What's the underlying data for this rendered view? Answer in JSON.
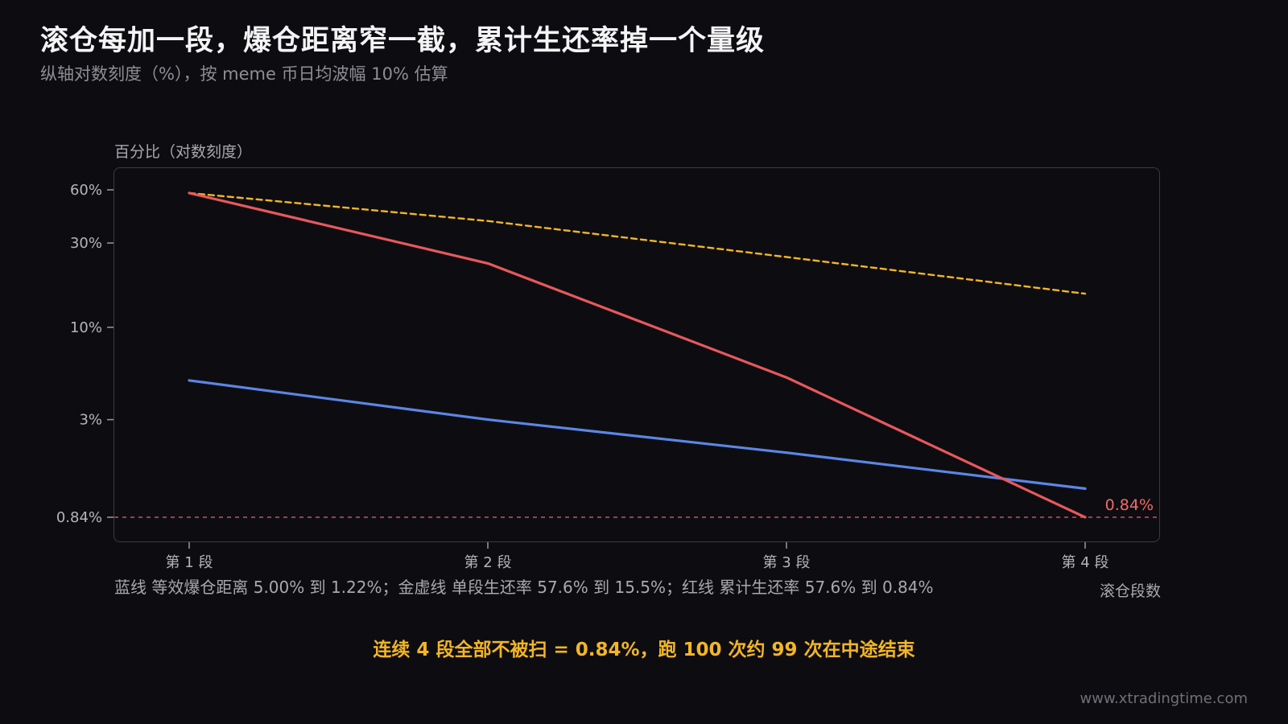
{
  "title": "滚仓每加一段，爆仓距离窄一截，累计生还率掉一个量级",
  "subtitle": "纵轴对数刻度（%），按 meme 币日均波幅 10% 估算",
  "note": "蓝线 等效爆仓距离 5.00% 到 1.22%；金虚线 单段生还率 57.6% 到 15.5%；红线 累计生还率 57.6% 到 0.84%",
  "conclusion": "连续 4 段全部不被扫 = 0.84%，跑 100 次约 99 次在中途结束",
  "watermark": "www.xtradingtime.com",
  "colors": {
    "background": "#0d0d11",
    "blue": "#5b86e5",
    "gold": "#f3b527",
    "red": "#e8585c",
    "accent_text": "#f3b527"
  },
  "chart_data": {
    "type": "line",
    "title": "滚仓每加一段，爆仓距离窄一截，累计生还率掉一个量级",
    "xlabel": "滚仓段数",
    "ylabel": "百分比（对数刻度）",
    "yscale": "log",
    "ylim": [
      0.75,
      70
    ],
    "categories": [
      "第 1 段",
      "第 2 段",
      "第 3 段",
      "第 4 段"
    ],
    "yticks": [
      0.84,
      3,
      10,
      30,
      60
    ],
    "ytick_labels": [
      "0.84%",
      "3%",
      "10%",
      "30%",
      "60%"
    ],
    "series": [
      {
        "values": [
          5.0,
          3.0,
          1.95,
          1.22
        ],
        "color": "#5b86e5",
        "style": "solid"
      },
      {
        "values": [
          57.6,
          40.0,
          25.0,
          15.5
        ],
        "color": "#f3b527",
        "style": "dashed"
      },
      {
        "values": [
          57.6,
          23.0,
          5.2,
          0.84
        ],
        "color": "#e8585c",
        "style": "solid"
      }
    ],
    "reference_line": {
      "value": 0.84,
      "label": "0.84%",
      "color": "#e8585c",
      "style": "dashed"
    },
    "grid": false,
    "legend": "none"
  }
}
